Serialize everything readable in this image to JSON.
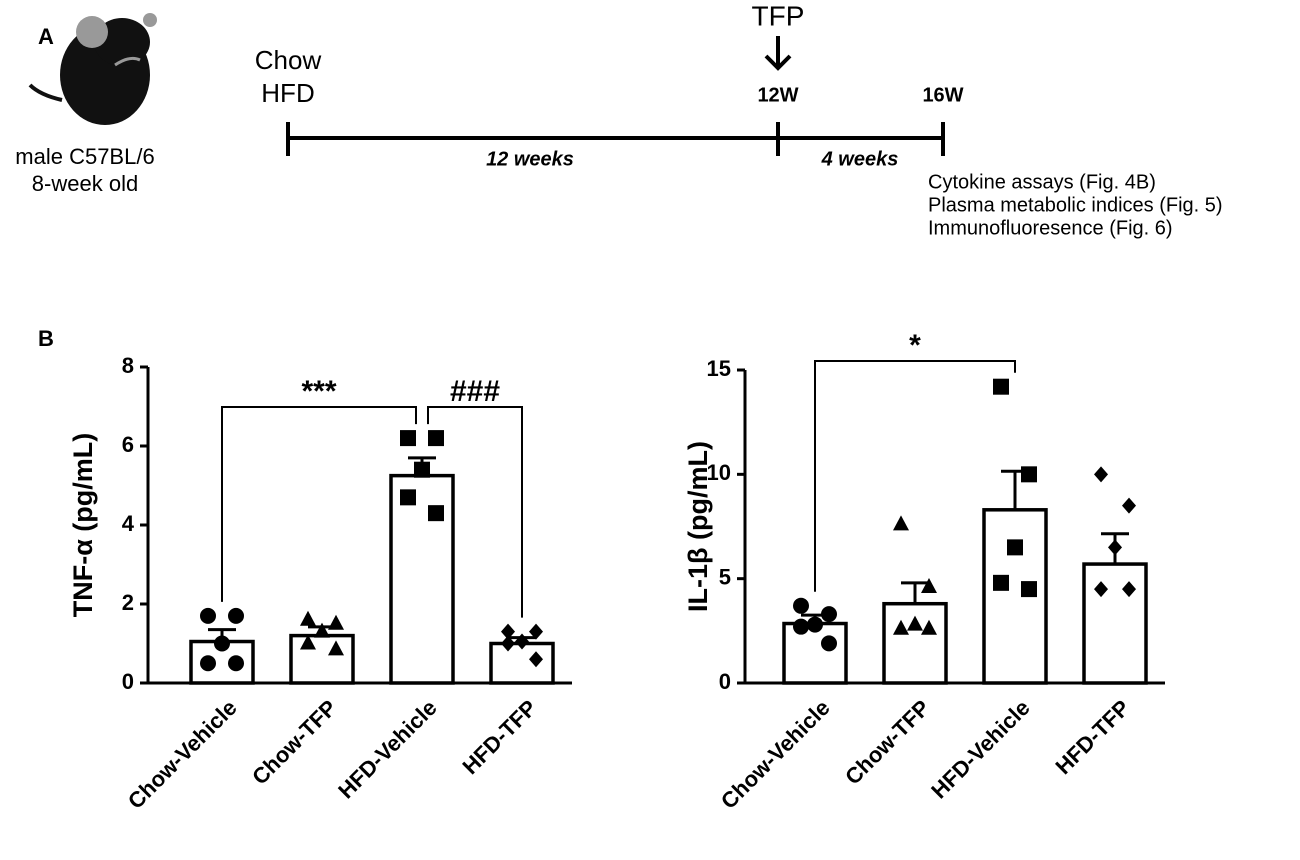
{
  "panel_a": {
    "label": "A",
    "mouse": [
      "male C57BL/6",
      "8-week old"
    ],
    "start": [
      "Chow",
      "HFD"
    ],
    "treatment": "TFP",
    "points": [
      "12W",
      "16W"
    ],
    "durations": [
      "12 weeks",
      "4 weeks"
    ],
    "outputs": [
      "Cytokine assays (Fig. 4B)",
      "Plasma metabolic indices (Fig. 5)",
      "Immunofluoresence (Fig. 6)"
    ]
  },
  "panel_b_label": "B",
  "chart_data": [
    {
      "type": "bar",
      "ylabel": "TNF-α (pg/mL)",
      "categories": [
        "Chow-Vehicle",
        "Chow-TFP",
        "HFD-Vehicle",
        "HFD-TFP"
      ],
      "values": [
        1.05,
        1.2,
        5.25,
        1.0
      ],
      "errors": [
        0.3,
        0.22,
        0.45,
        0.15
      ],
      "points": [
        [
          1.7,
          1.7,
          1.0,
          0.5,
          0.5
        ],
        [
          1.6,
          1.5,
          1.3,
          1.0,
          0.85
        ],
        [
          6.2,
          6.2,
          5.4,
          4.7,
          4.3
        ],
        [
          1.3,
          1.3,
          1.05,
          1.0,
          0.6
        ]
      ],
      "markers": [
        "circle",
        "triangle",
        "square",
        "diamond"
      ],
      "bar_color": "#ffffff",
      "marker_color": "#000000",
      "ylim": [
        0,
        8
      ],
      "yticks": [
        0,
        2,
        4,
        6,
        8
      ],
      "annotations": [
        {
          "text": "***",
          "between": [
            "Chow-Vehicle",
            "HFD-Vehicle"
          ]
        },
        {
          "text": "###",
          "between": [
            "HFD-Vehicle",
            "HFD-TFP"
          ]
        }
      ]
    },
    {
      "type": "bar",
      "ylabel": "IL-1β (pg/mL)",
      "categories": [
        "Chow-Vehicle",
        "Chow-TFP",
        "HFD-Vehicle",
        "HFD-TFP"
      ],
      "values": [
        2.85,
        3.8,
        8.3,
        5.7
      ],
      "errors": [
        0.4,
        1.0,
        1.85,
        1.45
      ],
      "points": [
        [
          3.7,
          3.3,
          2.8,
          2.7,
          1.9
        ],
        [
          7.6,
          4.6,
          2.8,
          2.6,
          2.6
        ],
        [
          14.2,
          10.0,
          6.5,
          4.8,
          4.5
        ],
        [
          10.0,
          8.5,
          6.5,
          4.5,
          4.5
        ]
      ],
      "markers": [
        "circle",
        "triangle",
        "square",
        "diamond"
      ],
      "bar_color": "#ffffff",
      "marker_color": "#000000",
      "ylim": [
        0,
        15
      ],
      "yticks": [
        0,
        5,
        10,
        15
      ],
      "annotations": [
        {
          "text": "*",
          "between": [
            "Chow-Vehicle",
            "HFD-Vehicle"
          ]
        }
      ]
    }
  ]
}
